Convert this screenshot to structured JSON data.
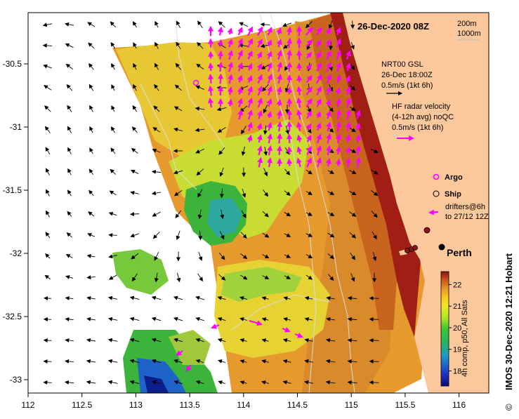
{
  "map": {
    "date_title": "26-Dec-2020 08Z",
    "contours": [
      "200m",
      "1000m"
    ],
    "credit": "IMOS 30-Dec-2020 12:21 Hobart",
    "copyright_symbol": "©",
    "city_label": "Perth",
    "lon_ticks": [
      "112",
      "112.5",
      "113",
      "113.5",
      "114",
      "114.5",
      "115",
      "115.5",
      "116"
    ],
    "lat_ticks": [
      "-30.5",
      "-31",
      "-31.5",
      "-32",
      "-32.5",
      "-33"
    ],
    "legend": {
      "gsl_title": "NRT00 GSL",
      "gsl_time": "26-Dec 18:00Z",
      "gsl_scale": "0.5m/s (1kt 6h)",
      "hf_title": "HF radar velocity",
      "hf_avg": "(4-12h avg) noQC",
      "hf_scale": "0.5m/s (1kt 6h)",
      "argo": "Argo",
      "ship": "Ship",
      "drifters_1": "drifters@6h",
      "drifters_2": "to 27/12 12Z"
    },
    "colorbar": {
      "label": "4h comp, p50, All Sats",
      "ticks": [
        "22",
        "21",
        "20",
        "19",
        "18"
      ],
      "range": [
        17.3,
        22.6
      ]
    },
    "colors": {
      "land": "#fcc89c",
      "ocean_nodata": "#ffffff",
      "gsl_arrow": "#000000",
      "hf_arrow": "#ff00ff",
      "isobath": "#dcdcdc"
    }
  }
}
